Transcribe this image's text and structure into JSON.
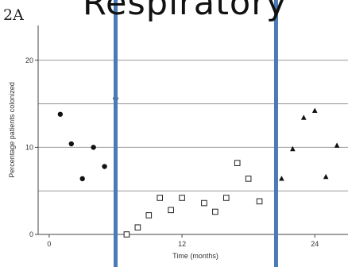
{
  "figure": {
    "panel_label": "2A",
    "title": "Respiratory"
  },
  "chart_data": {
    "type": "scatter",
    "title": "Respiratory",
    "xlabel": "Time (months)",
    "ylabel": "Percentage patients colonized",
    "xlim": [
      -1,
      27
    ],
    "ylim": [
      0,
      24
    ],
    "x_ticks": [
      0,
      12,
      24
    ],
    "y_ticks": [
      0,
      10,
      20
    ],
    "grid_y": [
      5,
      10,
      15,
      20
    ],
    "vertical_markers": [
      6,
      20.5
    ],
    "marker_color": "#4a7ab7",
    "series": [
      {
        "marker": "circle",
        "points": [
          [
            1,
            13.8
          ],
          [
            2,
            10.4
          ],
          [
            3,
            6.4
          ],
          [
            4,
            10.0
          ],
          [
            5,
            7.8
          ],
          [
            6,
            15.6
          ]
        ]
      },
      {
        "marker": "square",
        "points": [
          [
            7,
            0
          ],
          [
            8,
            0.8
          ],
          [
            9,
            2.2
          ],
          [
            10,
            4.2
          ],
          [
            11,
            2.8
          ],
          [
            12,
            4.2
          ],
          [
            14,
            3.6
          ],
          [
            15,
            2.6
          ],
          [
            16,
            4.2
          ],
          [
            17,
            8.2
          ],
          [
            18,
            6.4
          ],
          [
            19,
            3.8
          ]
        ]
      },
      {
        "marker": "triangle",
        "points": [
          [
            21,
            6.4
          ],
          [
            22,
            9.8
          ],
          [
            23,
            13.4
          ],
          [
            24,
            14.2
          ],
          [
            25,
            6.6
          ],
          [
            26,
            10.2
          ]
        ]
      }
    ]
  }
}
